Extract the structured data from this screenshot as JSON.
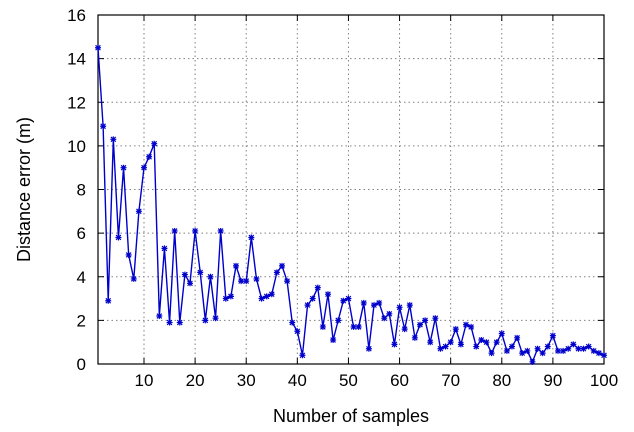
{
  "chart_data": {
    "type": "line",
    "title": "",
    "xlabel": "Number of samples",
    "ylabel": "Distance error (m)",
    "xlim": [
      1,
      100
    ],
    "ylim": [
      0,
      16
    ],
    "xticks": [
      10,
      20,
      30,
      40,
      50,
      60,
      70,
      80,
      90,
      100
    ],
    "yticks": [
      0,
      2,
      4,
      6,
      8,
      10,
      12,
      14,
      16
    ],
    "grid": true,
    "legend": "none",
    "series_color": "#0000cc",
    "marker": "asterisk",
    "series": [
      {
        "x": [
          1,
          2,
          3,
          4,
          5,
          6,
          7,
          8,
          9,
          10,
          11,
          12,
          13,
          14,
          15,
          16,
          17,
          18,
          19,
          20,
          21,
          22,
          23,
          24,
          25,
          26,
          27,
          28,
          29,
          30,
          31,
          32,
          33,
          34,
          35,
          36,
          37,
          38,
          39,
          40,
          41,
          42,
          43,
          44,
          45,
          46,
          47,
          48,
          49,
          50,
          51,
          52,
          53,
          54,
          55,
          56,
          57,
          58,
          59,
          60,
          61,
          62,
          63,
          64,
          65,
          66,
          67,
          68,
          69,
          70,
          71,
          72,
          73,
          74,
          75,
          76,
          77,
          78,
          79,
          80,
          81,
          82,
          83,
          84,
          85,
          86,
          87,
          88,
          89,
          90,
          91,
          92,
          93,
          94,
          95,
          96,
          97,
          98,
          99,
          100
        ],
        "values": [
          14.5,
          10.9,
          2.9,
          10.3,
          5.8,
          9.0,
          5.0,
          3.9,
          7.0,
          9.0,
          9.5,
          10.1,
          2.2,
          5.3,
          1.9,
          6.1,
          1.9,
          4.1,
          3.7,
          6.1,
          4.2,
          2.0,
          4.0,
          2.1,
          6.1,
          3.0,
          3.1,
          4.5,
          3.8,
          3.8,
          5.8,
          3.9,
          3.0,
          3.1,
          3.2,
          4.2,
          4.5,
          3.8,
          1.9,
          1.5,
          0.4,
          2.7,
          3.0,
          3.5,
          1.7,
          3.2,
          1.1,
          2.0,
          2.9,
          3.0,
          1.7,
          1.7,
          2.8,
          0.7,
          2.7,
          2.8,
          2.1,
          2.3,
          0.9,
          2.6,
          1.6,
          2.7,
          1.2,
          1.8,
          2.0,
          1.0,
          2.1,
          0.7,
          0.8,
          1.0,
          1.6,
          0.9,
          1.8,
          1.7,
          0.8,
          1.1,
          1.0,
          0.5,
          1.0,
          1.4,
          0.6,
          0.8,
          1.2,
          0.5,
          0.6,
          0.1,
          0.7,
          0.5,
          0.8,
          1.3,
          0.6,
          0.6,
          0.7,
          0.9,
          0.7,
          0.7,
          0.8,
          0.6,
          0.5,
          0.4
        ]
      }
    ]
  }
}
